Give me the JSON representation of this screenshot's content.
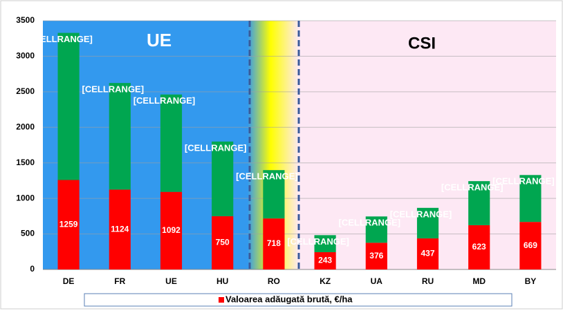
{
  "chart_data": {
    "type": "stacked-bar",
    "categories": [
      "DE",
      "FR",
      "UE",
      "HU",
      "RO",
      "KZ",
      "UA",
      "RU",
      "MD",
      "BY"
    ],
    "series": [
      {
        "name": "Valoarea adăugată brută, €/ha",
        "color": "#ff0000",
        "values": [
          1259,
          1124,
          1092,
          750,
          718,
          243,
          376,
          437,
          623,
          669
        ]
      },
      {
        "color": "#00a650",
        "values": [
          2070,
          1500,
          1370,
          1050,
          680,
          240,
          370,
          430,
          620,
          660
        ],
        "value_labels": [
          "[CELLRANGE]",
          "[CELLRANGE]",
          "[CELLRANGE]",
          "[CELLRANGE]",
          "[CELLRANGE]",
          "[CELLRANGE]",
          "[CELLRANGE]",
          "[CELLRANGE]",
          "[CELLRANGE]",
          "[CELLRANGE]"
        ]
      }
    ],
    "ylim": [
      0,
      3500
    ],
    "yticks": [
      0,
      500,
      1000,
      1500,
      2000,
      2500,
      3000,
      3500
    ],
    "grid": true,
    "annotations": [
      "UE",
      "CSI"
    ],
    "legend": "bottom"
  }
}
